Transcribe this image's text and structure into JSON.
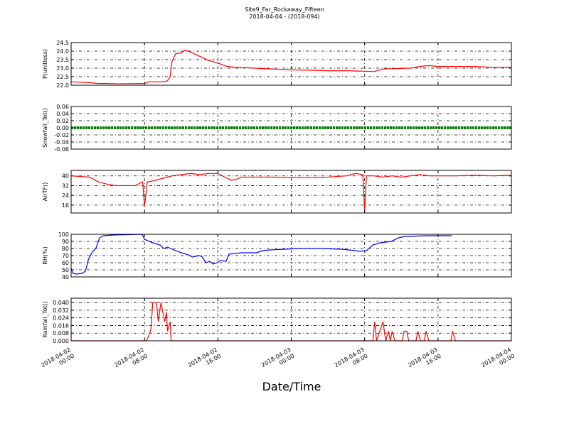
{
  "title": "Site9_Far_Rockaway_Fifteen",
  "subtitle": "2018-04-04 - (2018-094)",
  "xlabel": "Date/Time",
  "xlim": [
    "2018-04-02 00:00",
    "2018-04-04 00:00"
  ],
  "xticks": [
    "2018-04-02 00:00",
    "2018-04-02 08:00",
    "2018-04-02 16:00",
    "2018-04-03 00:00",
    "2018-04-03 08:00",
    "2018-04-03 16:00",
    "2018-04-04 00:00"
  ],
  "chart_data": [
    {
      "type": "line",
      "ylabel": "P(unitless)",
      "color": "#ff0000",
      "grid": true,
      "ylim": [
        22.0,
        24.5
      ],
      "yticks": [
        {
          "value": 22,
          "label": "22.0"
        },
        22.5,
        {
          "value": 23,
          "label": "23.0"
        },
        23.5,
        {
          "value": 24,
          "label": "24.0"
        },
        24.5
      ],
      "x": [
        "2018-04-02 00:00",
        "2018-04-02 02:00",
        "2018-04-02 03:00",
        "2018-04-02 04:00",
        "2018-04-02 05:00",
        "2018-04-02 08:00",
        "2018-04-02 08:30",
        "2018-04-02 10:00",
        "2018-04-02 10:30",
        "2018-04-02 10:48",
        "2018-04-02 11:00",
        "2018-04-02 11:24",
        "2018-04-02 12:00",
        "2018-04-02 12:24",
        "2018-04-02 13:00",
        "2018-04-02 14:00",
        "2018-04-02 15:00",
        "2018-04-02 16:00",
        "2018-04-02 17:00",
        "2018-04-02 18:00",
        "2018-04-02 20:00",
        "2018-04-02 22:00",
        "2018-04-03 00:00",
        "2018-04-03 02:00",
        "2018-04-03 04:00",
        "2018-04-03 06:00",
        "2018-04-03 08:00",
        "2018-04-03 09:00",
        "2018-04-03 10:00",
        "2018-04-03 13:00",
        "2018-04-03 14:00",
        "2018-04-03 15:00",
        "2018-04-03 16:00",
        "2018-04-03 20:00",
        "2018-04-03 22:00",
        "2018-04-04 00:00"
      ],
      "values": [
        22.2,
        22.15,
        22.1,
        22.1,
        22.08,
        22.1,
        22.2,
        22.2,
        22.25,
        22.5,
        23.4,
        23.85,
        23.9,
        24.05,
        23.95,
        23.7,
        23.45,
        23.3,
        23.1,
        23.05,
        23.0,
        22.95,
        22.9,
        22.88,
        22.85,
        22.85,
        22.82,
        22.8,
        22.95,
        23.0,
        23.1,
        23.15,
        23.1,
        23.1,
        23.05,
        23.05
      ]
    },
    {
      "type": "line",
      "ylabel": "Snowfall_Tot()",
      "color": "#008000",
      "grid": true,
      "ylim": [
        -0.06,
        0.06
      ],
      "yticks": [
        -0.06,
        -0.04,
        -0.02,
        {
          "value": 0,
          "label": "0.00"
        },
        0.02,
        0.04,
        0.06
      ],
      "x": [
        "2018-04-02 00:00",
        "2018-04-02 04:00",
        "2018-04-02 08:00",
        "2018-04-02 12:00",
        "2018-04-02 16:00",
        "2018-04-02 20:00",
        "2018-04-03 00:00",
        "2018-04-03 04:00",
        "2018-04-03 08:00",
        "2018-04-03 12:00",
        "2018-04-03 16:00",
        "2018-04-03 20:00",
        "2018-04-04 00:00"
      ],
      "values": [
        0,
        0,
        0,
        0,
        0,
        0,
        0,
        0,
        0,
        0,
        0,
        0,
        0
      ]
    },
    {
      "type": "line",
      "ylabel": "AirTF()",
      "color": "#ff0000",
      "grid": true,
      "ylim": [
        9.5,
        44.5
      ],
      "yticks": [
        16,
        24,
        32,
        40
      ],
      "x": [
        "2018-04-02 00:00",
        "2018-04-02 01:00",
        "2018-04-02 02:00",
        "2018-04-02 03:00",
        "2018-04-02 04:00",
        "2018-04-02 05:00",
        "2018-04-02 07:00",
        "2018-04-02 07:30",
        "2018-04-02 07:48",
        "2018-04-02 08:00",
        "2018-04-02 08:18",
        "2018-04-02 09:00",
        "2018-04-02 10:00",
        "2018-04-02 11:00",
        "2018-04-02 12:00",
        "2018-04-02 13:00",
        "2018-04-02 14:00",
        "2018-04-02 15:00",
        "2018-04-02 16:00",
        "2018-04-02 17:00",
        "2018-04-02 17:30",
        "2018-04-02 18:00",
        "2018-04-02 18:30",
        "2018-04-02 20:00",
        "2018-04-02 22:00",
        "2018-04-03 00:00",
        "2018-04-03 02:00",
        "2018-04-03 04:00",
        "2018-04-03 06:00",
        "2018-04-03 07:00",
        "2018-04-03 07:48",
        "2018-04-03 08:00",
        "2018-04-03 08:12",
        "2018-04-03 09:00",
        "2018-04-03 10:00",
        "2018-04-03 11:00",
        "2018-04-03 12:00",
        "2018-04-03 13:00",
        "2018-04-03 14:00",
        "2018-04-03 15:00",
        "2018-04-03 16:00",
        "2018-04-03 18:00",
        "2018-04-03 20:00",
        "2018-04-03 22:00",
        "2018-04-04 00:00"
      ],
      "values": [
        40,
        39.5,
        39,
        35,
        33,
        32,
        32,
        34,
        35,
        15,
        35,
        36,
        38,
        40,
        41,
        42,
        41,
        42,
        42,
        38,
        36.5,
        37,
        39,
        39,
        39,
        38.5,
        38.5,
        39,
        40,
        42,
        41,
        12,
        40,
        40,
        39,
        40,
        39,
        40,
        41,
        40,
        40,
        40,
        40.5,
        40,
        40.5
      ]
    },
    {
      "type": "line",
      "ylabel": "RH(%)",
      "color": "#0000ff",
      "grid": true,
      "ylim": [
        40,
        100
      ],
      "yticks": [
        40,
        50,
        60,
        70,
        80,
        90,
        100
      ],
      "x": [
        "2018-04-02 00:00",
        "2018-04-02 00:12",
        "2018-04-02 00:36",
        "2018-04-02 01:12",
        "2018-04-02 01:33",
        "2018-04-02 01:54",
        "2018-04-02 02:18",
        "2018-04-02 02:42",
        "2018-04-02 03:06",
        "2018-04-02 03:30",
        "2018-04-02 04:39",
        "2018-04-02 07:45",
        "2018-04-02 08:00",
        "2018-04-02 08:54",
        "2018-04-02 09:42",
        "2018-04-02 10:06",
        "2018-04-02 10:30",
        "2018-04-02 11:12",
        "2018-04-02 12:00",
        "2018-04-02 12:48",
        "2018-04-02 13:12",
        "2018-04-02 14:00",
        "2018-04-02 14:18",
        "2018-04-02 14:42",
        "2018-04-02 15:06",
        "2018-04-02 15:30",
        "2018-04-02 15:54",
        "2018-04-02 16:18",
        "2018-04-02 16:54",
        "2018-04-02 17:12",
        "2018-04-02 17:48",
        "2018-04-02 18:36",
        "2018-04-02 20:12",
        "2018-04-02 20:54",
        "2018-04-02 21:42",
        "2018-04-02 23:18",
        "2018-04-03 00:48",
        "2018-04-03 03:06",
        "2018-04-03 05:30",
        "2018-04-03 07:00",
        "2018-04-03 07:24",
        "2018-04-03 08:12",
        "2018-04-03 08:54",
        "2018-04-03 09:42",
        "2018-04-03 10:54",
        "2018-04-03 11:42",
        "2018-04-03 12:24",
        "2018-04-03 14:48",
        "2018-04-03 17:30"
      ],
      "values": [
        52,
        45,
        44,
        45,
        48,
        65,
        75,
        80,
        95,
        98,
        99,
        100,
        93,
        88,
        85,
        80,
        82,
        78,
        74,
        71,
        68,
        70,
        68,
        60,
        62,
        58,
        60,
        63,
        62,
        72,
        73,
        74,
        74,
        77,
        78,
        79,
        80,
        80,
        79,
        77,
        76,
        77,
        85,
        88,
        90,
        95,
        97,
        98,
        98
      ]
    },
    {
      "type": "line",
      "ylabel": "Rainfall_Tot()",
      "color": "#ff0000",
      "grid": true,
      "ylim": [
        0,
        0.0445
      ],
      "yticks": [
        {
          "value": 0,
          "label": "0.000"
        },
        0.008,
        0.016,
        0.024,
        0.032,
        {
          "value": 0.04,
          "label": "0.040"
        }
      ],
      "x": [
        "2018-04-02 00:00",
        "2018-04-02 08:12",
        "2018-04-02 08:24",
        "2018-04-02 08:42",
        "2018-04-02 08:54",
        "2018-04-02 09:18",
        "2018-04-02 09:30",
        "2018-04-02 09:48",
        "2018-04-02 10:00",
        "2018-04-02 10:12",
        "2018-04-02 10:24",
        "2018-04-02 10:30",
        "2018-04-02 10:48",
        "2018-04-02 10:54",
        "2018-04-03 08:54",
        "2018-04-03 09:06",
        "2018-04-03 09:18",
        "2018-04-03 10:00",
        "2018-04-03 10:18",
        "2018-04-03 10:36",
        "2018-04-03 10:48",
        "2018-04-03 11:00",
        "2018-04-03 11:18",
        "2018-04-03 12:06",
        "2018-04-03 12:18",
        "2018-04-03 12:36",
        "2018-04-03 12:48",
        "2018-04-03 13:36",
        "2018-04-03 13:48",
        "2018-04-03 14:06",
        "2018-04-03 14:30",
        "2018-04-03 14:42",
        "2018-04-03 15:00",
        "2018-04-03 17:24",
        "2018-04-03 17:36",
        "2018-04-03 17:54",
        "2018-04-04 00:00"
      ],
      "values": [
        0,
        0,
        0.004,
        0.012,
        0.04,
        0.04,
        0.02,
        0.04,
        0.03,
        0.02,
        0.03,
        0.01,
        0.02,
        0,
        0,
        0.02,
        0,
        0.02,
        0,
        0.01,
        0,
        0.01,
        0,
        0,
        0.01,
        0.01,
        0,
        0,
        0.01,
        0,
        0,
        0.01,
        0,
        0,
        0.01,
        0,
        0
      ]
    }
  ]
}
